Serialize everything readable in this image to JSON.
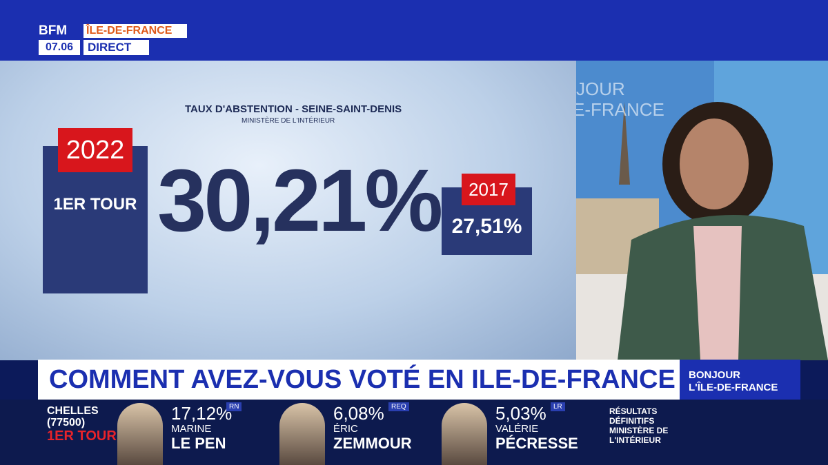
{
  "header": {
    "logo": "BFM",
    "time": "07.06",
    "region": "ÎLE-DE-FRANCE",
    "live": "DIRECT"
  },
  "graphic": {
    "title": "TAUX D'ABSTENTION - SEINE-SAINT-DENIS",
    "source": "MINISTÈRE DE L'INTÉRIEUR",
    "current": {
      "year": "2022",
      "round": "1ER TOUR",
      "value": "30,21%"
    },
    "previous": {
      "year": "2017",
      "value": "27,51%"
    }
  },
  "studio_backdrop": {
    "line1": "JOUR",
    "line2": "E-FRANCE"
  },
  "banner": {
    "headline": "COMMENT AVEZ-VOUS VOTÉ EN ILE-DE-FRANCE ?",
    "show": [
      "BONJOUR",
      "L'ÎLE-DE-FRANCE"
    ]
  },
  "results": {
    "town": "CHELLES",
    "postcode": "(77500)",
    "round": "1ER TOUR",
    "candidates": [
      {
        "value": "17,12%",
        "first_name": "MARINE",
        "last_name": "LE PEN",
        "party": "RN"
      },
      {
        "value": "6,08%",
        "first_name": "ÉRIC",
        "last_name": "ZEMMOUR",
        "party": "REQ"
      },
      {
        "value": "5,03%",
        "first_name": "VALÉRIE",
        "last_name": "PÉCRESSE",
        "party": "LR"
      }
    ],
    "source": [
      "RÉSULTATS",
      "DÉFINITIFS",
      "MINISTÈRE DE",
      "L'INTÉRIEUR"
    ]
  }
}
